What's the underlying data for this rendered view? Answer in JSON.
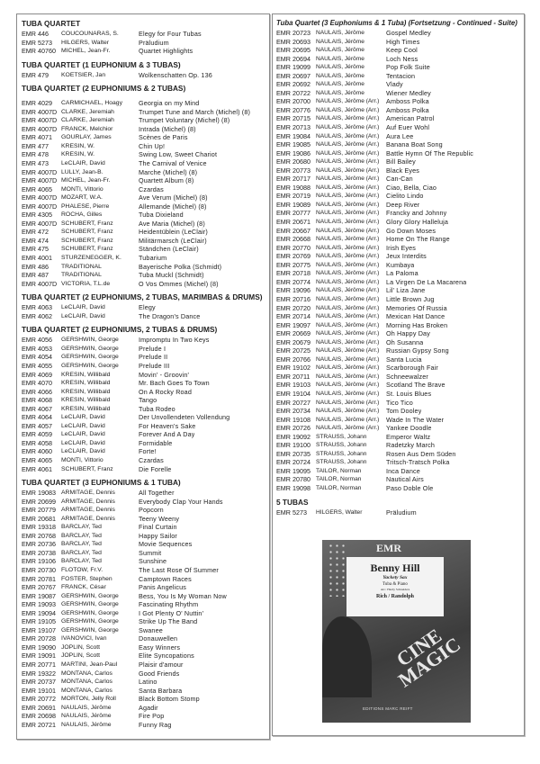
{
  "left_sections": [
    {
      "title": "TUBA QUARTET",
      "entries": [
        [
          "EMR 446",
          "COUCOUNARAS, S.",
          "Elegy for Four Tubas"
        ],
        [
          "EMR 5273",
          "HILGERS, Walter",
          "Präludium"
        ],
        [
          "EMR 40760",
          "MICHEL, Jean-Fr.",
          "Quartet Highlights"
        ]
      ]
    },
    {
      "title": "TUBA QUARTET (1 EUPHONIUM & 3 TUBAS)",
      "entries": [
        [
          "EMR 479",
          "KOETSIER, Jan",
          "Wolkenschatten Op. 136"
        ]
      ]
    },
    {
      "title": "TUBA QUARTET (2 EUPHONIUMS & 2 TUBAS)",
      "gap": true,
      "entries": [
        [
          "EMR 4029",
          "CARMICHAEL, Hoagy",
          "Georgia on my Mind"
        ],
        [
          "EMR 4007D",
          "CLARKE, Jeremiah",
          "Trumpet Tune and March (Michel) (8)"
        ],
        [
          "EMR 4007D",
          "CLARKE, Jeremiah",
          "Trumpet Voluntary (Michel) (8)"
        ],
        [
          "EMR 4007D",
          "FRANCK, Melchior",
          "Intrada (Michel) (8)"
        ],
        [
          "EMR 4071",
          "GOURLAY, James",
          "Scènes de Paris"
        ],
        [
          "EMR 477",
          "KRESIN, W.",
          "Chin Up!"
        ],
        [
          "EMR 478",
          "KRESIN, W.",
          "Swing Low, Sweet Chariot"
        ],
        [
          "EMR 473",
          "LeCLAIR, David",
          "The Carnival of Venice"
        ],
        [
          "EMR 4007D",
          "LULLY, Jean-B.",
          "Marche (Michel) (8)"
        ],
        [
          "EMR 4007D",
          "MICHEL, Jean-Fr.",
          "Quartett Album (8)"
        ],
        [
          "EMR 4065",
          "MONTI, Vittorio",
          "Czardas"
        ],
        [
          "EMR 4007D",
          "MOZART, W.A.",
          "Ave Verum (Michel) (8)"
        ],
        [
          "EMR 4007D",
          "PHALESE, Pierre",
          "Allemande (Michel) (8)"
        ],
        [
          "EMR 4305",
          "ROCHA, Gilles",
          "Tuba Dixieland"
        ],
        [
          "EMR 4007D",
          "SCHUBERT, Franz",
          "Ave Maria (Michel) (8)"
        ],
        [
          "EMR 472",
          "SCHUBERT, Franz",
          "Heidentüblein (LeClair)"
        ],
        [
          "EMR 474",
          "SCHUBERT, Franz",
          "Militärmarsch (LeClair)"
        ],
        [
          "EMR 475",
          "SCHUBERT, Franz",
          "Ständchen (LeClair)"
        ],
        [
          "EMR 4001",
          "STURZENEGGER, K.",
          "Tubarium"
        ],
        [
          "EMR 486",
          "TRADITIONAL",
          "Bayerische Polka (Schmidt)"
        ],
        [
          "EMR 487",
          "TRADITIONAL",
          "Tuba Muckl (Schmidt)"
        ],
        [
          "EMR 4007D",
          "VICTORIA, T.L.de",
          "O Vos Ommes (Michel) (8)"
        ]
      ]
    },
    {
      "title": "TUBA QUARTET (2 EUPHONIUMS, 2 TUBAS, MARIMBAS & DRUMS)",
      "entries": [
        [
          "EMR 4063",
          "LeCLAIR, David",
          "Elegy"
        ],
        [
          "EMR 4062",
          "LeCLAIR, David",
          "The Dragon's Dance"
        ]
      ]
    },
    {
      "title": "TUBA QUARTET (2 EUPHONIUMS, 2 TUBAS & DRUMS)",
      "entries": [
        [
          "EMR 4056",
          "GERSHWIN, George",
          "Impromptu In Two Keys"
        ],
        [
          "EMR 4053",
          "GERSHWIN, George",
          "Prelude I"
        ],
        [
          "EMR 4054",
          "GERSHWIN, George",
          "Prelude II"
        ],
        [
          "EMR 4055",
          "GERSHWIN, George",
          "Prelude III"
        ],
        [
          "EMR 4069",
          "KRESIN, Willibald",
          "Movin' - Groovin'"
        ],
        [
          "EMR 4070",
          "KRESIN, Willibald",
          "Mr. Bach Goes To Town"
        ],
        [
          "EMR 4066",
          "KRESIN, Willibald",
          "On A Rocky Road"
        ],
        [
          "EMR 4068",
          "KRESIN, Willibald",
          "Tango"
        ],
        [
          "EMR 4067",
          "KRESIN, Willibald",
          "Tuba Rodeo"
        ],
        [
          "EMR 4064",
          "LeCLAIR, David",
          "Der Unvollendeten Vollendung"
        ],
        [
          "EMR 4057",
          "LeCLAIR, David",
          "For Heaven's Sake"
        ],
        [
          "EMR 4059",
          "LeCLAIR, David",
          "Forever And A Day"
        ],
        [
          "EMR 4058",
          "LeCLAIR, David",
          "Formidable"
        ],
        [
          "EMR 4060",
          "LeCLAIR, David",
          "Forte!"
        ],
        [
          "EMR 4065",
          "MONTI, Vittorio",
          "Czardas"
        ],
        [
          "EMR 4061",
          "SCHUBERT, Franz",
          "Die Forelle"
        ]
      ]
    },
    {
      "title": "TUBA QUARTET (3 EUPHONIUMS & 1 TUBA)",
      "entries": [
        [
          "EMR 19083",
          "ARMITAGE, Dennis",
          "All Together"
        ],
        [
          "EMR 20699",
          "ARMITAGE, Dennis",
          "Everybody Clap Your Hands"
        ],
        [
          "EMR 20779",
          "ARMITAGE, Dennis",
          "Popcorn"
        ],
        [
          "EMR 20681",
          "ARMITAGE, Dennis",
          "Teeny Weeny"
        ],
        [
          "EMR 19318",
          "BARCLAY, Ted",
          "Final Curtain"
        ],
        [
          "EMR 20768",
          "BARCLAY, Ted",
          "Happy Sailor"
        ],
        [
          "EMR 20736",
          "BARCLAY, Ted",
          "Movie Sequences"
        ],
        [
          "EMR 20738",
          "BARCLAY, Ted",
          "Summit"
        ],
        [
          "EMR 19106",
          "BARCLAY, Ted",
          "Sunshine"
        ],
        [
          "EMR 20730",
          "FLOTOW, Fr.V.",
          "The Last Rose Of Summer"
        ],
        [
          "EMR 20781",
          "FOSTER, Stephen",
          "Camptown Races"
        ],
        [
          "EMR 20767",
          "FRANCK, César",
          "Panis Angelicus"
        ],
        [
          "EMR 19087",
          "GERSHWIN, George",
          "Bess, You Is My Woman Now"
        ],
        [
          "EMR 19093",
          "GERSHWIN, George",
          "Fascinating Rhythm"
        ],
        [
          "EMR 19094",
          "GERSHWIN, George",
          "I Got Plenty O' Nuttin'"
        ],
        [
          "EMR 19105",
          "GERSHWIN, George",
          "Strike Up The Band"
        ],
        [
          "EMR 19107",
          "GERSHWIN, George",
          "Swanee"
        ],
        [
          "EMR 20728",
          "IVANOVICI, Ivan",
          "Donauwellen"
        ],
        [
          "EMR 19090",
          "JOPLIN, Scott",
          "Easy Winners"
        ],
        [
          "EMR 19091",
          "JOPLIN, Scott",
          "Elite Syncopations"
        ],
        [
          "EMR 20771",
          "MARTINI, Jean-Paul",
          "Plaisir d'amour"
        ],
        [
          "EMR 19322",
          "MONTANA, Carlos",
          "Good Friends"
        ],
        [
          "EMR 20737",
          "MONTANA, Carlos",
          "Latino"
        ],
        [
          "EMR 19101",
          "MONTANA, Carlos",
          "Santa Barbara"
        ],
        [
          "EMR 20772",
          "MORTON, Jelly Roll",
          "Black Bottom Stomp"
        ],
        [
          "EMR 20691",
          "NAULAIS, Jérôme",
          "Agadir"
        ],
        [
          "EMR 20698",
          "NAULAIS, Jérôme",
          "Fire Pop"
        ],
        [
          "EMR 20721",
          "NAULAIS, Jérôme",
          "Funny Rag"
        ]
      ]
    }
  ],
  "right_sections": [
    {
      "title": "Tuba Quartet (3 Euphoniums & 1 Tuba) (Fortsetzung - Continued - Suite)",
      "continued": true,
      "entries": [
        [
          "EMR 20723",
          "NAULAIS, Jérôme",
          "Gospel Medley"
        ],
        [
          "EMR 20693",
          "NAULAIS, Jérôme",
          "High Times"
        ],
        [
          "EMR 20695",
          "NAULAIS, Jérôme",
          "Keep Cool"
        ],
        [
          "EMR 20694",
          "NAULAIS, Jérôme",
          "Loch Ness"
        ],
        [
          "EMR 19099",
          "NAULAIS, Jérôme",
          "Pop Folk Suite"
        ],
        [
          "EMR 20697",
          "NAULAIS, Jérôme",
          "Tentacion"
        ],
        [
          "EMR 20692",
          "NAULAIS, Jérôme",
          "Vlady"
        ],
        [
          "EMR 20722",
          "NAULAIS, Jérôme",
          "Wiener Medley"
        ],
        [
          "EMR 20700",
          "NAULAIS, Jérôme (Arr.)",
          "Amboss Polka"
        ],
        [
          "EMR 20776",
          "NAULAIS, Jérôme (Arr.)",
          "Amboss Polka"
        ],
        [
          "EMR 20715",
          "NAULAIS, Jérôme (Arr.)",
          "American Patrol"
        ],
        [
          "EMR 20713",
          "NAULAIS, Jérôme (Arr.)",
          "Auf Euer Wohl"
        ],
        [
          "EMR 19084",
          "NAULAIS, Jérôme (Arr.)",
          "Aura Lee"
        ],
        [
          "EMR 19085",
          "NAULAIS, Jérôme (Arr.)",
          "Banana Boat Song"
        ],
        [
          "EMR 19086",
          "NAULAIS, Jérôme (Arr.)",
          "Battle Hymn Of The Republic"
        ],
        [
          "EMR 20680",
          "NAULAIS, Jérôme (Arr.)",
          "Bill Bailey"
        ],
        [
          "EMR 20773",
          "NAULAIS, Jérôme (Arr.)",
          "Black Eyes"
        ],
        [
          "EMR 20717",
          "NAULAIS, Jérôme (Arr.)",
          "Can-Can"
        ],
        [
          "EMR 19088",
          "NAULAIS, Jérôme (Arr.)",
          "Ciao, Bella, Ciao"
        ],
        [
          "EMR 20719",
          "NAULAIS, Jérôme (Arr.)",
          "Cielito Lindo"
        ],
        [
          "EMR 19089",
          "NAULAIS, Jérôme (Arr.)",
          "Deep River"
        ],
        [
          "EMR 20777",
          "NAULAIS, Jérôme (Arr.)",
          "Francky and Johnny"
        ],
        [
          "EMR 20671",
          "NAULAIS, Jérôme (Arr.)",
          "Glory Glory Halleluja"
        ],
        [
          "EMR 20667",
          "NAULAIS, Jérôme (Arr.)",
          "Go Down Moses"
        ],
        [
          "EMR 20668",
          "NAULAIS, Jérôme (Arr.)",
          "Home On The Range"
        ],
        [
          "EMR 20770",
          "NAULAIS, Jérôme (Arr.)",
          "Irish Eyes"
        ],
        [
          "EMR 20769",
          "NAULAIS, Jérôme (Arr.)",
          "Jeux Interdits"
        ],
        [
          "EMR 20775",
          "NAULAIS, Jérôme (Arr.)",
          "Kumbaya"
        ],
        [
          "EMR 20718",
          "NAULAIS, Jérôme (Arr.)",
          "La Paloma"
        ],
        [
          "EMR 20774",
          "NAULAIS, Jérôme (Arr.)",
          "La Virgen De La Macarena"
        ],
        [
          "EMR 19096",
          "NAULAIS, Jérôme (Arr.)",
          "Lil' Liza Jane"
        ],
        [
          "EMR 20716",
          "NAULAIS, Jérôme (Arr.)",
          "Little Brown Jug"
        ],
        [
          "EMR 20720",
          "NAULAIS, Jérôme (Arr.)",
          "Memories Of Russia"
        ],
        [
          "EMR 20714",
          "NAULAIS, Jérôme (Arr.)",
          "Mexican Hat Dance"
        ],
        [
          "EMR 19097",
          "NAULAIS, Jérôme (Arr.)",
          "Morning Has Broken"
        ],
        [
          "EMR 20669",
          "NAULAIS, Jérôme (Arr.)",
          "Oh Happy Day"
        ],
        [
          "EMR 20679",
          "NAULAIS, Jérôme (Arr.)",
          "Oh Susanna"
        ],
        [
          "EMR 20725",
          "NAULAIS, Jérôme (Arr.)",
          "Russian Gypsy Song"
        ],
        [
          "EMR 20766",
          "NAULAIS, Jérôme (Arr.)",
          "Santa Lucia"
        ],
        [
          "EMR 19102",
          "NAULAIS, Jérôme (Arr.)",
          "Scarborough Fair"
        ],
        [
          "EMR 20711",
          "NAULAIS, Jérôme (Arr.)",
          "Schneewalzer"
        ],
        [
          "EMR 19103",
          "NAULAIS, Jérôme (Arr.)",
          "Scotland The Brave"
        ],
        [
          "EMR 19104",
          "NAULAIS, Jérôme (Arr.)",
          "St. Louis Blues"
        ],
        [
          "EMR 20727",
          "NAULAIS, Jérôme (Arr.)",
          "Tico Tico"
        ],
        [
          "EMR 20734",
          "NAULAIS, Jérôme (Arr.)",
          "Tom Dooley"
        ],
        [
          "EMR 19108",
          "NAULAIS, Jérôme (Arr.)",
          "Wade In The Water"
        ],
        [
          "EMR 20726",
          "NAULAIS, Jérôme (Arr.)",
          "Yankee Doodle"
        ],
        [
          "EMR 19092",
          "STRAUSS, Johann",
          "Emperor Waltz"
        ],
        [
          "EMR 19100",
          "STRAUSS, Johann",
          "Radetzky March"
        ],
        [
          "EMR 20735",
          "STRAUSS, Johann",
          "Rosen Aus Dem Süden"
        ],
        [
          "EMR 20724",
          "STRAUSS, Johann",
          "Tritsch-Tratsch Polka"
        ],
        [
          "EMR 19095",
          "TAILOR, Norman",
          "Inca Dance"
        ],
        [
          "EMR 20780",
          "TAILOR, Norman",
          "Nautical Airs"
        ],
        [
          "EMR 19098",
          "TAILOR, Norman",
          "Paso Doble Ole"
        ]
      ]
    },
    {
      "title": "5 TUBAS",
      "entries": [
        [
          "EMR 5273",
          "HILGERS, Walter",
          "Präludium"
        ]
      ]
    }
  ],
  "cover": {
    "logo": "EMR",
    "title": "Benny Hill",
    "subtitle": "Yackety Sax",
    "instrumentation": "Tuba & Piano",
    "arranger": "Arr.: Hardy Schneiders",
    "composers": "Rich / Randolph",
    "series": "CINE MAGIC",
    "publisher": "EDITIONS MARC REIFT"
  }
}
